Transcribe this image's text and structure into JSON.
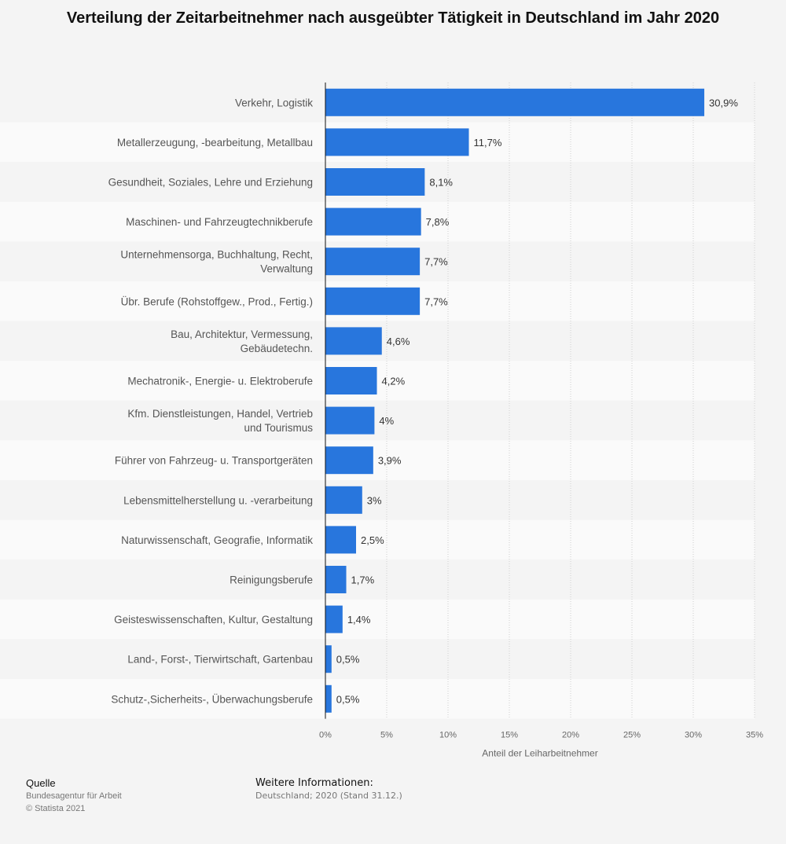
{
  "title": "Verteilung der Zeitarbeitnehmer nach ausgeübter Tätigkeit in Deutschland im Jahr 2020",
  "chart_data": {
    "type": "bar",
    "orientation": "horizontal",
    "categories": [
      "Verkehr, Logistik",
      "Metallerzeugung, -bearbeitung, Metallbau",
      "Gesundheit, Soziales, Lehre und Erziehung",
      "Maschinen- und Fahrzeugtechnikberufe",
      "Unternehmensorga, Buchhaltung, Recht, Verwaltung",
      "Übr. Berufe (Rohstoffgew., Prod., Fertig.)",
      "Bau, Architektur, Vermessung, Gebäudetechn.",
      "Mechatronik-, Energie- u. Elektroberufe",
      "Kfm. Dienstleistungen, Handel, Vertrieb und Tourismus",
      "Führer von Fahrzeug- u. Transportgeräten",
      "Lebensmittelherstellung u. -verarbeitung",
      "Naturwissenschaft, Geografie, Informatik",
      "Reinigungsberufe",
      "Geisteswissenschaften, Kultur, Gestaltung",
      "Land-, Forst-, Tierwirtschaft, Gartenbau",
      "Schutz-,Sicherheits-, Überwachungsberufe"
    ],
    "values": [
      30.9,
      11.7,
      8.1,
      7.8,
      7.7,
      7.7,
      4.6,
      4.2,
      4,
      3.9,
      3,
      2.5,
      1.7,
      1.4,
      0.5,
      0.5
    ],
    "value_labels": [
      "30,9%",
      "11,7%",
      "8,1%",
      "7,8%",
      "7,7%",
      "7,7%",
      "4,6%",
      "4,2%",
      "4%",
      "3,9%",
      "3%",
      "2,5%",
      "1,7%",
      "1,4%",
      "0,5%",
      "0,5%"
    ],
    "xlim": [
      0,
      35
    ],
    "x_ticks": [
      0,
      5,
      10,
      15,
      20,
      25,
      30,
      35
    ],
    "x_tick_labels": [
      "0%",
      "5%",
      "10%",
      "15%",
      "20%",
      "25%",
      "30%",
      "35%"
    ],
    "xlabel": "Anteil der Leiharbeitnehmer",
    "ylabel": "",
    "grid": true,
    "bar_color": "#2876dd"
  },
  "footer": {
    "source_heading": "Quelle",
    "source_text": "Bundesagentur für Arbeit",
    "copyright": "© Statista 2021",
    "info_heading": "Weitere Informationen:",
    "info_text": "Deutschland; 2020 (Stand 31.12.)"
  }
}
